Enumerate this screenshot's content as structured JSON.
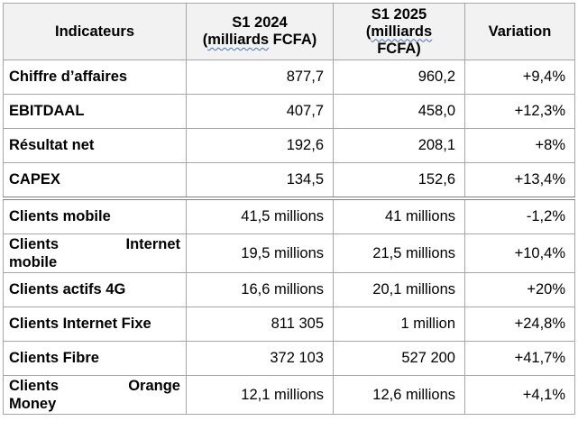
{
  "table": {
    "headers": {
      "indicator": "Indicateurs",
      "s1_2024_line1": "S1 2024",
      "s1_2024_line2_open": "(",
      "s1_2024_line2_word": "milliards",
      "s1_2024_line2_rest": " FCFA)",
      "s1_2025_line1": "S1 2025",
      "s1_2025_line2_open": "(",
      "s1_2025_line2_word": "milliards",
      "s1_2025_line3": "FCFA)",
      "variation": "Variation"
    },
    "rows": [
      {
        "label": "Chiffre d’affaires",
        "s1_2024": "877,7",
        "s1_2025": "960,2",
        "variation": "+9,4%"
      },
      {
        "label": "EBITDAAL",
        "s1_2024": "407,7",
        "s1_2025": "458,0",
        "variation": "+12,3%"
      },
      {
        "label": "Résultat net",
        "s1_2024": "192,6",
        "s1_2025": "208,1",
        "variation": "+8%"
      },
      {
        "label": "CAPEX",
        "s1_2024": "134,5",
        "s1_2025": "152,6",
        "variation": "+13,4%"
      },
      {
        "label": "Clients mobile",
        "s1_2024": "41,5 millions",
        "s1_2025": "41 millions",
        "variation": "-1,2%"
      },
      {
        "label_line1_a": "Clients",
        "label_line1_b": "Internet",
        "label_line2": "mobile",
        "s1_2024": "19,5 millions",
        "s1_2025": "21,5 millions",
        "variation": "+10,4%"
      },
      {
        "label": "Clients actifs 4G",
        "s1_2024": "16,6 millions",
        "s1_2025": "20,1 millions",
        "variation": "+20%"
      },
      {
        "label": "Clients Internet Fixe",
        "s1_2024": "811 305",
        "s1_2025": "1 million",
        "variation": "+24,8%"
      },
      {
        "label": "Clients Fibre",
        "s1_2024": "372 103",
        "s1_2025": "527 200",
        "variation": "+41,7%"
      },
      {
        "label_line1_a": "Clients",
        "label_line1_b": "Orange",
        "label_line2": "Money",
        "s1_2024": "12,1 millions",
        "s1_2025": "12,6 millions",
        "variation": "+4,1%"
      }
    ]
  }
}
